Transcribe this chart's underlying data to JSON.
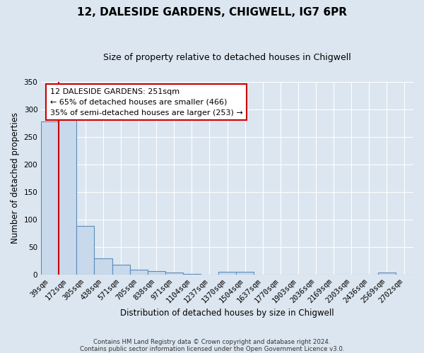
{
  "title1": "12, DALESIDE GARDENS, CHIGWELL, IG7 6PR",
  "title2": "Size of property relative to detached houses in Chigwell",
  "xlabel": "Distribution of detached houses by size in Chigwell",
  "ylabel": "Number of detached properties",
  "bin_labels": [
    "39sqm",
    "172sqm",
    "305sqm",
    "438sqm",
    "571sqm",
    "705sqm",
    "838sqm",
    "971sqm",
    "1104sqm",
    "1237sqm",
    "1370sqm",
    "1504sqm",
    "1637sqm",
    "1770sqm",
    "1903sqm",
    "2036sqm",
    "2169sqm",
    "2303sqm",
    "2436sqm",
    "2569sqm",
    "2702sqm"
  ],
  "bar_heights": [
    278,
    290,
    88,
    29,
    18,
    8,
    6,
    3,
    1,
    0,
    4,
    4,
    0,
    0,
    0,
    0,
    0,
    0,
    0,
    3,
    0
  ],
  "bar_color": "#c8d9ec",
  "bar_edge_color": "#5b8db8",
  "vline_x_index": 1,
  "vline_color": "#cc0000",
  "annotation_title": "12 DALESIDE GARDENS: 251sqm",
  "annotation_line1": "← 65% of detached houses are smaller (466)",
  "annotation_line2": "35% of semi-detached houses are larger (253) →",
  "annotation_box_color": "#ffffff",
  "annotation_box_edge": "#cc0000",
  "ylim": [
    0,
    350
  ],
  "background_color": "#dce6f0",
  "grid_color": "#ffffff",
  "footer1": "Contains HM Land Registry data © Crown copyright and database right 2024.",
  "footer2": "Contains public sector information licensed under the Open Government Licence v3.0."
}
